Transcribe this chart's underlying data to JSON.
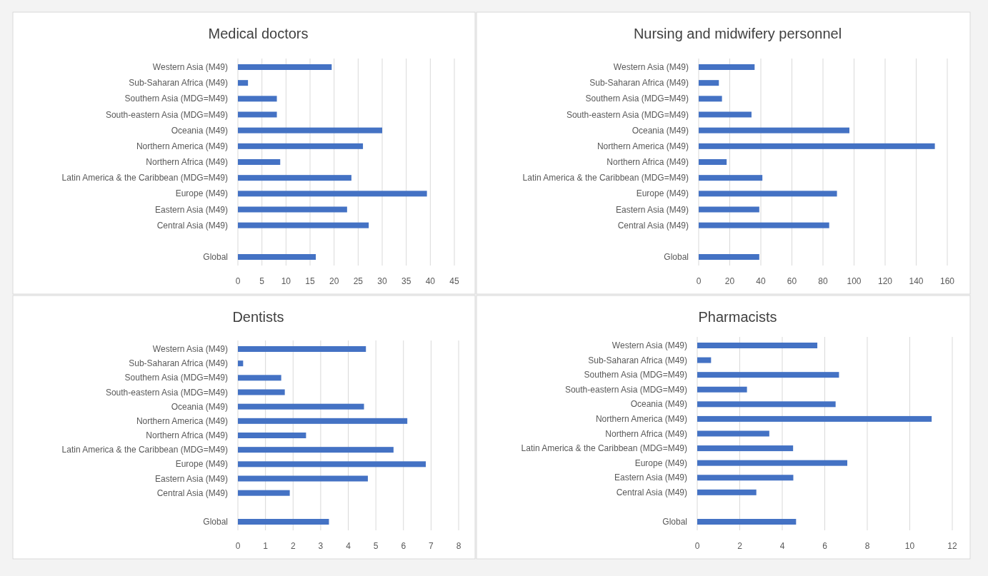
{
  "chart_data": [
    {
      "type": "bar",
      "orientation": "horizontal",
      "title": "Medical doctors",
      "categories": [
        "Western Asia (M49)",
        "Sub-Saharan Africa (M49)",
        "Southern Asia (MDG=M49)",
        "South-eastern Asia (MDG=M49)",
        "Oceania (M49)",
        "Northern America (M49)",
        "Northern Africa (M49)",
        "Latin America & the Caribbean (MDG=M49)",
        "Europe (M49)",
        "Eastern Asia (M49)",
        "Central Asia (M49)",
        null,
        "Global"
      ],
      "values": [
        19.5,
        2.1,
        8.1,
        8.1,
        30.0,
        26.0,
        8.8,
        23.6,
        39.3,
        22.7,
        27.2,
        null,
        16.2
      ],
      "color": "#4472c4",
      "xlim": [
        0,
        45
      ],
      "xticks": [
        0,
        5,
        10,
        15,
        20,
        25,
        30,
        35,
        40,
        45
      ],
      "grid": "x"
    },
    {
      "type": "bar",
      "orientation": "horizontal",
      "title": "Nursing and midwifery personnel",
      "categories": [
        "Western Asia (M49)",
        "Sub-Saharan Africa (M49)",
        "Southern Asia (MDG=M49)",
        "South-eastern Asia (MDG=M49)",
        "Oceania (M49)",
        "Northern America (M49)",
        "Northern Africa (M49)",
        "Latin America & the Caribbean (MDG=M49)",
        "Europe (M49)",
        "Eastern Asia (M49)",
        "Central Asia (M49)",
        null,
        "Global"
      ],
      "values": [
        36,
        13,
        15,
        34,
        97,
        152,
        18,
        41,
        89,
        39,
        84,
        null,
        39
      ],
      "color": "#4472c4",
      "xlim": [
        0,
        160
      ],
      "xticks": [
        0,
        20,
        40,
        60,
        80,
        100,
        120,
        140,
        160
      ],
      "grid": "x"
    },
    {
      "type": "bar",
      "orientation": "horizontal",
      "title": "Dentists",
      "categories": [
        "Western Asia (M49)",
        "Sub-Saharan Africa (M49)",
        "Southern Asia (MDG=M49)",
        "South-eastern Asia (MDG=M49)",
        "Oceania (M49)",
        "Northern America (M49)",
        "Northern Africa (M49)",
        "Latin America & the Caribbean (MDG=M49)",
        "Europe (M49)",
        "Eastern Asia (M49)",
        "Central Asia (M49)",
        null,
        "Global"
      ],
      "values": [
        4.64,
        0.19,
        1.57,
        1.7,
        4.57,
        6.14,
        2.47,
        5.64,
        6.81,
        4.71,
        1.88,
        null,
        3.3
      ],
      "color": "#4472c4",
      "xlim": [
        0,
        8
      ],
      "xticks": [
        0,
        1,
        2,
        3,
        4,
        5,
        6,
        7,
        8
      ],
      "grid": "x"
    },
    {
      "type": "bar",
      "orientation": "horizontal",
      "title": "Pharmacists",
      "categories": [
        "Western Asia (M49)",
        "Sub-Saharan Africa (M49)",
        "Southern Asia (MDG=M49)",
        "South-eastern Asia (MDG=M49)",
        "Oceania (M49)",
        "Northern America (M49)",
        "Northern Africa (M49)",
        "Latin America & the Caribbean (MDG=M49)",
        "Europe (M49)",
        "Eastern Asia (M49)",
        "Central Asia (M49)",
        null,
        "Global"
      ],
      "values": [
        5.65,
        0.65,
        6.67,
        2.34,
        6.51,
        11.03,
        3.39,
        4.51,
        7.06,
        4.52,
        2.78,
        null,
        4.65
      ],
      "color": "#4472c4",
      "xlim": [
        0,
        12
      ],
      "xticks": [
        0,
        2,
        4,
        6,
        8,
        10,
        12
      ],
      "grid": "x"
    }
  ]
}
